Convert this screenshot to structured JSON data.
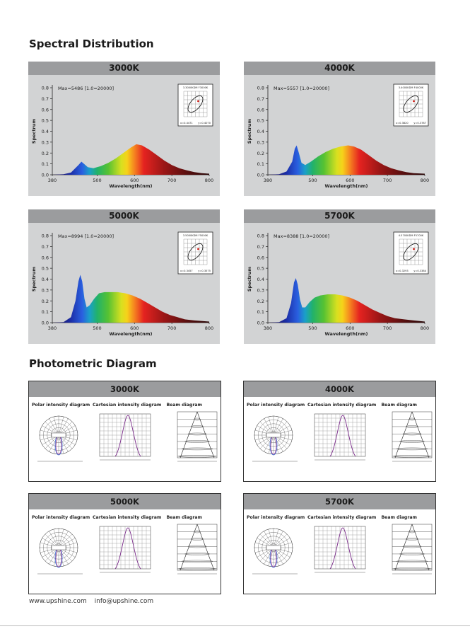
{
  "spectral": {
    "title": "Spectral Distribution",
    "ylabel": "Spectrum",
    "xlabel": "Wavelength(nm)",
    "y_ticks": [
      "0.8",
      "0.7",
      "0.6",
      "0.5",
      "0.4",
      "0.3",
      "0.2",
      "0.1",
      "0.0"
    ],
    "x_ticks": [
      "380",
      "500",
      "600",
      "700",
      "800"
    ],
    "panels": [
      {
        "cct": "3000K",
        "max_text": "Max=5486 [1.0=20000]",
        "inset_top": "3.3000KDM F3000K",
        "inset_x": "x=0.4471",
        "inset_y": "y=0.4070"
      },
      {
        "cct": "4000K",
        "max_text": "Max=5557 [1.0=20000]",
        "inset_top": "3.4000KDM F4000K",
        "inset_x": "x=0.3820",
        "inset_y": "y=0.3787"
      },
      {
        "cct": "5000K",
        "max_text": "Max=8994 [1.0=20000]",
        "inset_top": "3.5000KDM F5000K",
        "inset_x": "x=0.3457",
        "inset_y": "y=0.3575"
      },
      {
        "cct": "5700K",
        "max_text": "Max=8388 [1.0=20000]",
        "inset_top": "4.5700KDM F5700K",
        "inset_x": "x=0.3293",
        "inset_y": "y=0.3384"
      }
    ]
  },
  "chart_data": [
    {
      "type": "area",
      "title": "3000K",
      "xlabel": "Wavelength(nm)",
      "ylabel": "Spectrum",
      "xlim": [
        380,
        800
      ],
      "ylim": [
        0,
        0.8
      ],
      "x": [
        380,
        410,
        430,
        450,
        458,
        465,
        475,
        490,
        510,
        530,
        550,
        570,
        590,
        605,
        620,
        640,
        660,
        680,
        700,
        720,
        740,
        760,
        780,
        800
      ],
      "y": [
        0,
        0.005,
        0.02,
        0.09,
        0.12,
        0.1,
        0.07,
        0.06,
        0.08,
        0.11,
        0.15,
        0.2,
        0.25,
        0.28,
        0.27,
        0.23,
        0.18,
        0.13,
        0.09,
        0.06,
        0.04,
        0.025,
        0.015,
        0.01
      ]
    },
    {
      "type": "area",
      "title": "4000K",
      "xlabel": "Wavelength(nm)",
      "ylabel": "Spectrum",
      "xlim": [
        380,
        800
      ],
      "ylim": [
        0,
        0.8
      ],
      "x": [
        380,
        410,
        430,
        445,
        452,
        457,
        463,
        470,
        480,
        495,
        515,
        535,
        555,
        575,
        595,
        610,
        630,
        650,
        670,
        690,
        710,
        730,
        750,
        770,
        800
      ],
      "y": [
        0,
        0.005,
        0.03,
        0.12,
        0.24,
        0.27,
        0.2,
        0.11,
        0.09,
        0.12,
        0.17,
        0.21,
        0.24,
        0.26,
        0.27,
        0.26,
        0.23,
        0.18,
        0.13,
        0.09,
        0.06,
        0.04,
        0.025,
        0.015,
        0.01
      ]
    },
    {
      "type": "area",
      "title": "5000K",
      "xlabel": "Wavelength(nm)",
      "ylabel": "Spectrum",
      "xlim": [
        380,
        800
      ],
      "ylim": [
        0,
        0.8
      ],
      "x": [
        380,
        410,
        430,
        442,
        450,
        455,
        460,
        466,
        472,
        480,
        492,
        505,
        520,
        535,
        555,
        575,
        595,
        615,
        635,
        655,
        675,
        695,
        715,
        735,
        760,
        800
      ],
      "y": [
        0,
        0.005,
        0.05,
        0.2,
        0.38,
        0.44,
        0.38,
        0.22,
        0.14,
        0.16,
        0.22,
        0.27,
        0.28,
        0.28,
        0.28,
        0.27,
        0.25,
        0.22,
        0.18,
        0.14,
        0.1,
        0.07,
        0.05,
        0.03,
        0.02,
        0.01
      ]
    },
    {
      "type": "area",
      "title": "5700K",
      "xlabel": "Wavelength(nm)",
      "ylabel": "Spectrum",
      "xlim": [
        380,
        800
      ],
      "ylim": [
        0,
        0.8
      ],
      "x": [
        380,
        410,
        430,
        442,
        450,
        455,
        460,
        466,
        472,
        480,
        492,
        505,
        520,
        540,
        560,
        580,
        600,
        620,
        640,
        660,
        680,
        700,
        720,
        745,
        770,
        800
      ],
      "y": [
        0,
        0.005,
        0.04,
        0.18,
        0.37,
        0.41,
        0.35,
        0.21,
        0.14,
        0.14,
        0.19,
        0.23,
        0.25,
        0.26,
        0.26,
        0.25,
        0.23,
        0.2,
        0.16,
        0.12,
        0.09,
        0.06,
        0.04,
        0.03,
        0.02,
        0.01
      ]
    }
  ],
  "photometric": {
    "title": "Photometric Diagram",
    "sub_polar": "Polar intensity diagram",
    "sub_cartesian": "Cartesian intensity diagram",
    "sub_beam": "Beam diagram",
    "panels": [
      {
        "cct": "3000K"
      },
      {
        "cct": "4000K"
      },
      {
        "cct": "5000K"
      },
      {
        "cct": "5700K"
      }
    ]
  },
  "footer": {
    "website": "www.upshine.com",
    "email": "info@upshine.com"
  }
}
